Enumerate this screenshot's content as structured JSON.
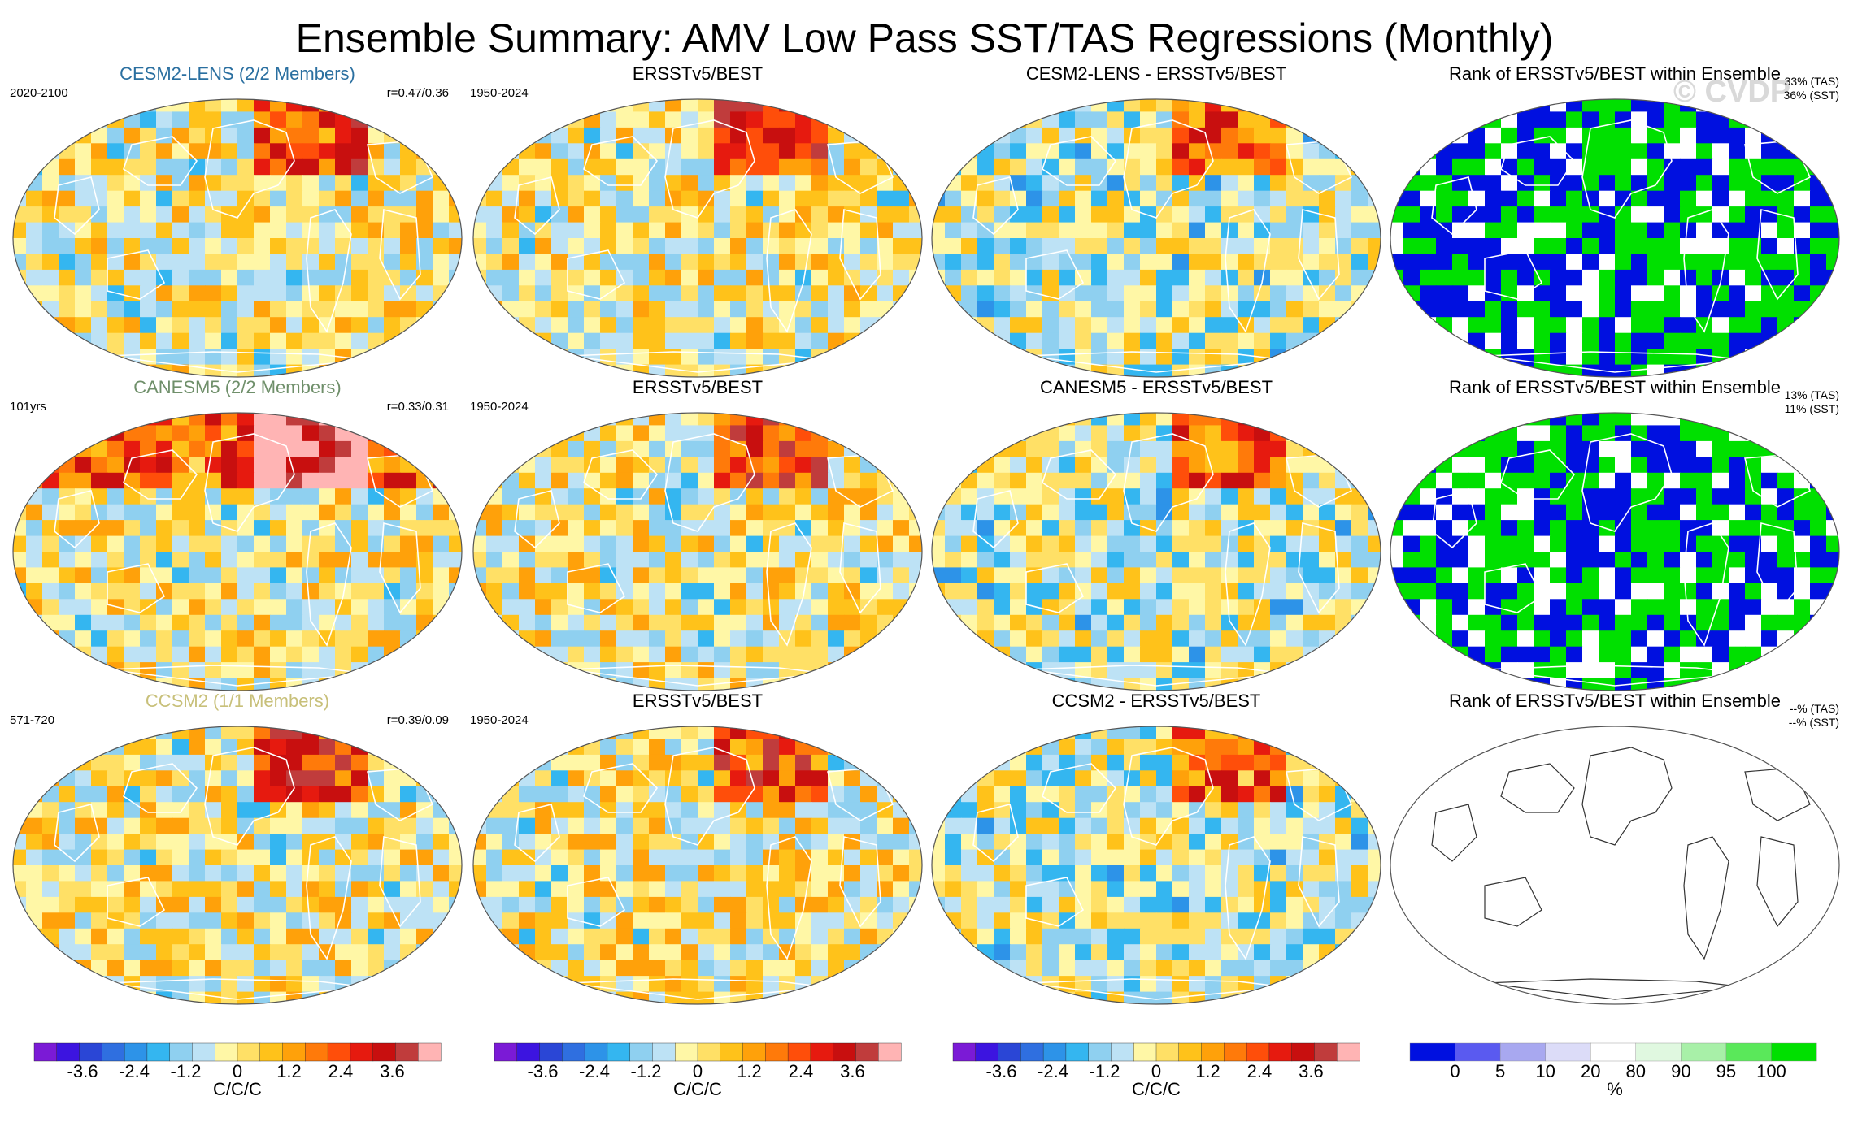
{
  "title": "Ensemble Summary: AMV Low Pass SST/TAS Regressions (Monthly)",
  "watermark": "© CVDP",
  "colors": {
    "div_palette": [
      "#7b1ad6",
      "#3c14e0",
      "#2a46d6",
      "#2f6fe0",
      "#2d93e8",
      "#34b6f0",
      "#8fd0f0",
      "#bde2f5",
      "#fff7a6",
      "#ffe066",
      "#ffc21a",
      "#ffa10a",
      "#ff7a0a",
      "#ff4e0a",
      "#e61a0f",
      "#c80f0f",
      "#c03c3c",
      "#ffb4b4"
    ],
    "rank_palette": [
      "#0010e0",
      "#5a5af0",
      "#a8a8f0",
      "#dcdcf8",
      "#ffffff",
      "#e0f8e0",
      "#a8f0a8",
      "#5ae85a",
      "#00e000"
    ]
  },
  "rows": [
    {
      "model": {
        "title": "CESM2-LENS (2/2 Members)",
        "title_color": "#2a6fa0",
        "left": "2020-2100",
        "right": "r=0.47/0.36"
      },
      "obs": {
        "title": "ERSSTv5/BEST",
        "left": "1950-2024"
      },
      "diff": {
        "title": "CESM2-LENS - ERSSTv5/BEST"
      },
      "rank": {
        "title": "Rank of ERSSTv5/BEST within Ensemble",
        "tas": "33% (TAS)",
        "sst": "36% (SST)"
      }
    },
    {
      "model": {
        "title": "CANESM5 (2/2 Members)",
        "title_color": "#6f8f6a",
        "left": "101yrs",
        "right": "r=0.33/0.31"
      },
      "obs": {
        "title": "ERSSTv5/BEST",
        "left": "1950-2024"
      },
      "diff": {
        "title": "CANESM5 - ERSSTv5/BEST"
      },
      "rank": {
        "title": "Rank of ERSSTv5/BEST within Ensemble",
        "tas": "13% (TAS)",
        "sst": "11% (SST)"
      }
    },
    {
      "model": {
        "title": "CCSM2 (1/1 Members)",
        "title_color": "#c8c07a",
        "left": "571-720",
        "right": "r=0.39/0.09"
      },
      "obs": {
        "title": "ERSSTv5/BEST",
        "left": "1950-2024"
      },
      "diff": {
        "title": "CCSM2 - ERSSTv5/BEST"
      },
      "rank": {
        "title": "Rank of ERSSTv5/BEST within Ensemble",
        "tas": "--% (TAS)",
        "sst": "--% (SST)"
      }
    }
  ],
  "chart_data": [
    {
      "type": "heatmap",
      "title": "Regression colorbar",
      "levels": [
        -4.2,
        -3.6,
        -3.0,
        -2.4,
        -1.8,
        -1.2,
        -0.6,
        -0.3,
        0,
        0.3,
        0.6,
        1.2,
        1.8,
        2.4,
        3.0,
        3.6,
        4.2
      ],
      "tick_labels": [
        "-3.6",
        "-2.4",
        "-1.2",
        "0",
        "1.2",
        "2.4",
        "3.6"
      ],
      "tick_values": [
        -3.6,
        -2.4,
        -1.2,
        0,
        1.2,
        2.4,
        3.6
      ],
      "units": "C/C/C"
    },
    {
      "type": "heatmap",
      "title": "Rank colorbar",
      "tick_labels": [
        "0",
        "5",
        "10",
        "20",
        "80",
        "90",
        "95",
        "100"
      ],
      "units": "%"
    }
  ]
}
